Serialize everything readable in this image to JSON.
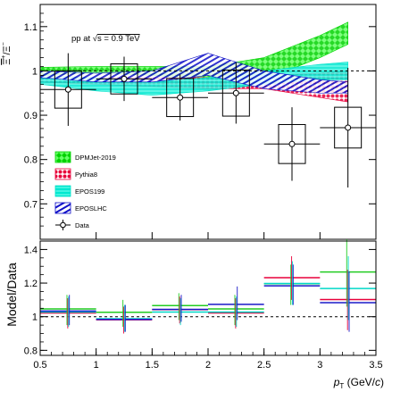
{
  "chart_data": [
    {
      "type": "scatter",
      "title": "pp at √s = 0.9 TeV",
      "title_parts": {
        "prefix": "pp at ",
        "sqrt": "√",
        "rest": "s = 0.9 TeV"
      },
      "ylabel": "Ξ̄⁺/Ξ⁻",
      "ylabel_parts": {
        "num": "Ξ̄",
        "num_sup": "+",
        "sep": "/",
        "den": "Ξ",
        "den_sup": "−"
      },
      "xlim": [
        0.5,
        3.5
      ],
      "ylim": [
        0.62,
        1.15
      ],
      "yticks": [
        "0.7",
        "0.8",
        "0.9",
        "1",
        "1.1"
      ],
      "reference_line": 1.0,
      "legend_position": "bottom-left",
      "data": {
        "name": "Data",
        "x": [
          0.75,
          1.25,
          1.75,
          2.25,
          2.75,
          3.25
        ],
        "y": [
          0.958,
          0.982,
          0.94,
          0.95,
          0.835,
          0.872
        ],
        "x_err": [
          0.25,
          0.25,
          0.25,
          0.25,
          0.25,
          0.25
        ],
        "stat_err": [
          0.082,
          0.05,
          0.052,
          0.069,
          0.083,
          0.135
        ],
        "sys_err": [
          0.042,
          0.034,
          0.043,
          0.052,
          0.044,
          0.046
        ]
      },
      "models": [
        {
          "name": "DPMJet-2019",
          "color": "#00d200",
          "x": [
            0.5,
            1.0,
            1.5,
            2.0,
            2.5,
            3.0,
            3.25
          ],
          "lo": [
            0.99,
            0.995,
            0.99,
            0.98,
            0.98,
            1.03,
            1.06
          ],
          "hi": [
            1.008,
            1.01,
            1.01,
            1.01,
            1.03,
            1.08,
            1.11
          ]
        },
        {
          "name": "Pythia8",
          "color": "#e8003a",
          "x": [
            0.5,
            1.0,
            1.5,
            2.0,
            2.5,
            3.0,
            3.25
          ],
          "lo": [
            0.975,
            0.97,
            0.965,
            0.96,
            0.96,
            0.94,
            0.93
          ],
          "hi": [
            0.985,
            0.985,
            0.985,
            0.985,
            0.99,
            0.995,
            1.0
          ]
        },
        {
          "name": "EPOS199",
          "color": "#00e0c8",
          "x": [
            0.5,
            1.0,
            1.5,
            2.0,
            2.5,
            3.0,
            3.25
          ],
          "lo": [
            0.97,
            0.955,
            0.945,
            0.955,
            0.97,
            0.98,
            0.98
          ],
          "hi": [
            0.99,
            0.985,
            0.975,
            0.985,
            1.0,
            1.015,
            1.02
          ]
        },
        {
          "name": "EPOSLHC",
          "color": "#1010c8",
          "x": [
            0.5,
            1.0,
            1.5,
            2.0,
            2.5,
            3.0,
            3.25
          ],
          "lo": [
            0.985,
            0.975,
            0.975,
            0.99,
            0.96,
            0.95,
            0.95
          ],
          "hi": [
            1.0,
            0.995,
            1.0,
            1.04,
            1.0,
            0.98,
            0.975
          ]
        }
      ],
      "legend": [
        "DPMJet-2019",
        "Pythia8",
        "EPOS199",
        "EPOSLHC",
        "Data"
      ]
    },
    {
      "type": "line",
      "ylabel": "Model/Data",
      "xlabel": "p_T (GeV/c)",
      "xlabel_parts": {
        "p": "p",
        "sub": "T",
        "unit": " (GeV/",
        "c": "c",
        "close": ")"
      },
      "xlim": [
        0.5,
        3.5
      ],
      "ylim": [
        0.77,
        1.45
      ],
      "xticks": [
        "0.5",
        "1",
        "1.5",
        "2",
        "2.5",
        "3",
        "3.5"
      ],
      "yticks": [
        "0.8",
        "1",
        "1.2",
        "1.4"
      ],
      "reference_line": 1.0,
      "bin_edges": [
        0.5,
        1.0,
        1.5,
        2.0,
        2.5,
        3.0,
        3.5
      ],
      "series": [
        {
          "name": "DPMJet-2019",
          "color": "#22cc22",
          "values": [
            1.04,
            1.02,
            1.06,
            1.04,
            1.19,
            1.26
          ]
        },
        {
          "name": "Pythia8",
          "color": "#e8003a",
          "values": [
            1.02,
            0.98,
            1.04,
            1.02,
            1.23,
            1.1
          ]
        },
        {
          "name": "EPOS199",
          "color": "#00d8c8",
          "values": [
            1.03,
            0.99,
            1.03,
            1.03,
            1.2,
            1.17
          ]
        },
        {
          "name": "EPOSLHC",
          "color": "#1a1ac8",
          "values": [
            1.04,
            0.99,
            1.05,
            1.08,
            1.19,
            1.09
          ]
        }
      ],
      "uncertainties": [
        {
          "name": "DPMJet-2019",
          "color": "#22cc22",
          "err": [
            0.09,
            0.08,
            0.08,
            0.09,
            0.12,
            0.2
          ]
        },
        {
          "name": "Pythia8",
          "color": "#e8003a",
          "err": [
            0.09,
            0.08,
            0.08,
            0.09,
            0.13,
            0.18
          ]
        },
        {
          "name": "EPOS199",
          "color": "#00d8c8",
          "err": [
            0.09,
            0.08,
            0.08,
            0.09,
            0.13,
            0.19
          ]
        },
        {
          "name": "EPOSLHC",
          "color": "#1a1ac8",
          "err": [
            0.09,
            0.08,
            0.08,
            0.1,
            0.12,
            0.18
          ]
        }
      ]
    }
  ]
}
